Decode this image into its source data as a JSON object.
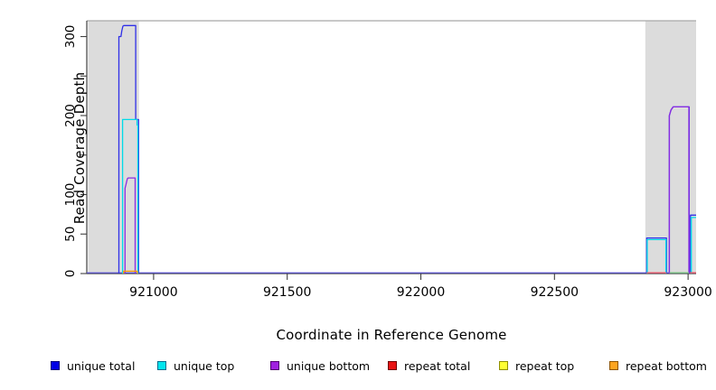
{
  "chart_data": {
    "type": "line",
    "title": "",
    "xlabel": "Coordinate in Reference Genome",
    "ylabel": "Read Coverage Depth",
    "xlim": [
      920750,
      923030
    ],
    "ylim": [
      0,
      320
    ],
    "grid": false,
    "background": "#ffffff",
    "x_ticks": [
      {
        "value": 921000,
        "label": "921000"
      },
      {
        "value": 921500,
        "label": "921500"
      },
      {
        "value": 922000,
        "label": "922000"
      },
      {
        "value": 922500,
        "label": "922500"
      },
      {
        "value": 923000,
        "label": "923000"
      }
    ],
    "y_ticks": [
      {
        "value": 0,
        "label": "0"
      },
      {
        "value": 50,
        "label": "50"
      },
      {
        "value": 100,
        "label": "100"
      },
      {
        "value": 150,
        "label": ""
      },
      {
        "value": 200,
        "label": "200"
      },
      {
        "value": 250,
        "label": ""
      },
      {
        "value": 300,
        "label": "300"
      }
    ],
    "shaded_regions": [
      {
        "from": 920755,
        "to": 920945,
        "color": "#dcdcdc"
      },
      {
        "from": 922840,
        "to": 923030,
        "color": "#dcdcdc"
      }
    ],
    "top_border_color": "#a8a8a8",
    "axis_color": "#404040",
    "baseline_color": "#5b54de",
    "series": [
      {
        "name": "unique total",
        "color": "#3030e8",
        "segments": [
          [
            [
              920870,
              0
            ],
            [
              920870,
              300
            ],
            [
              920878,
              300
            ],
            [
              920881,
              307
            ],
            [
              920885,
              313
            ],
            [
              920888,
              314
            ],
            [
              920933,
              314
            ],
            [
              920933,
              195
            ],
            [
              920944,
              195
            ],
            [
              920944,
              0
            ]
          ],
          [
            [
              922845,
              0
            ],
            [
              922845,
              45
            ],
            [
              922919,
              45
            ],
            [
              922919,
              0
            ]
          ],
          [
            [
              922930,
              0
            ],
            [
              922930,
              200
            ],
            [
              922936,
              207
            ],
            [
              922944,
              211
            ],
            [
              923004,
              211
            ],
            [
              923004,
              0
            ]
          ],
          [
            [
              923009,
              0
            ],
            [
              923009,
              74
            ],
            [
              923030,
              74
            ]
          ]
        ]
      },
      {
        "name": "unique top",
        "color": "#00dce8",
        "segments": [
          [
            [
              920884,
              0
            ],
            [
              920884,
              195
            ],
            [
              920938,
              195
            ],
            [
              920938,
              188
            ],
            [
              920941,
              188
            ],
            [
              920941,
              0
            ]
          ],
          [
            [
              922847,
              0
            ],
            [
              922847,
              43
            ],
            [
              922917,
              43
            ],
            [
              922917,
              0
            ]
          ],
          [
            [
              923012,
              0
            ],
            [
              923012,
              71
            ],
            [
              923030,
              71
            ]
          ]
        ]
      },
      {
        "name": "unique bottom",
        "color": "#8a2be2",
        "segments": [
          [
            [
              920893,
              0
            ],
            [
              920893,
              108
            ],
            [
              920896,
              112
            ],
            [
              920899,
              116
            ],
            [
              920902,
              120
            ],
            [
              920905,
              121
            ],
            [
              920931,
              121
            ],
            [
              920931,
              0
            ]
          ],
          [
            [
              922930,
              0
            ],
            [
              922930,
              200
            ],
            [
              922936,
              207
            ],
            [
              922944,
              211
            ],
            [
              923003,
              211
            ],
            [
              923003,
              0
            ]
          ]
        ]
      },
      {
        "name": "repeat total",
        "color": "#f2545f",
        "segments": [
          [
            [
              922845,
              1
            ],
            [
              922919,
              1
            ]
          ],
          [
            [
              923006,
              1
            ],
            [
              923030,
              1
            ]
          ]
        ]
      },
      {
        "name": "repeat top",
        "color": "#79c879",
        "segments": [
          [
            [
              922931,
              1
            ],
            [
              923003,
              1
            ]
          ]
        ]
      },
      {
        "name": "repeat bottom",
        "color": "#ff9a00",
        "segments": [
          [
            [
              920888,
              0
            ],
            [
              920888,
              3
            ],
            [
              920939,
              3
            ],
            [
              920939,
              0
            ]
          ]
        ]
      }
    ],
    "legend": {
      "position": "bottom",
      "entries": [
        {
          "label": "unique total",
          "fill": "#0000e6",
          "border": "#00007a"
        },
        {
          "label": "unique top",
          "fill": "#00e5ee",
          "border": "#006d8f"
        },
        {
          "label": "unique bottom",
          "fill": "#a020e0",
          "border": "#50006e"
        },
        {
          "label": "repeat total",
          "fill": "#e81313",
          "border": "#6e0000"
        },
        {
          "label": "repeat top",
          "fill": "#ffff33",
          "border": "#8f8f00"
        },
        {
          "label": "repeat bottom",
          "fill": "#ffa520",
          "border": "#8f5400"
        }
      ]
    }
  }
}
